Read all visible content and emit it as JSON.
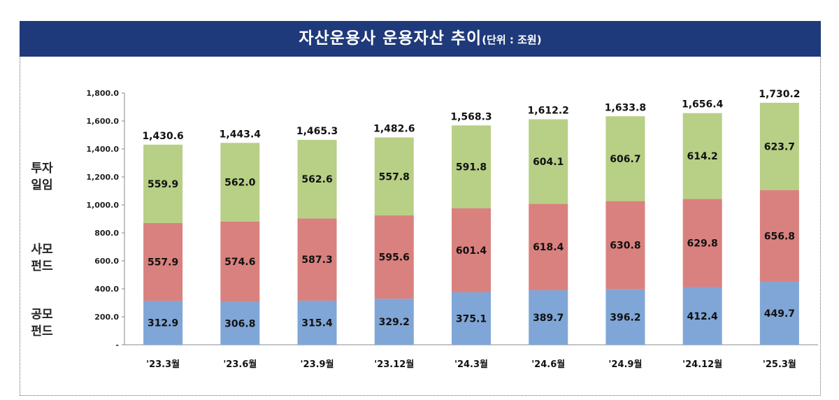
{
  "title": {
    "main": "자산운용사 운용자산 추이",
    "unit": "(단위 : 조원)"
  },
  "side_labels": {
    "investment": [
      "투자",
      "일임"
    ],
    "private_fund": [
      "사모",
      "펀드"
    ],
    "public_fund": [
      "공모",
      "펀드"
    ]
  },
  "colors": {
    "header_bg": "#1f3a7a",
    "public_fund": "#7fa6d6",
    "private_fund": "#d9817e",
    "investment": "#b8cf86"
  },
  "chart_data": {
    "type": "bar",
    "stacked": true,
    "title": "자산운용사 운용자산 추이",
    "categories": [
      "'23.3월",
      "'23.6월",
      "'23.9월",
      "'23.12월",
      "'24.3월",
      "'24.6월",
      "'24.9월",
      "'24.12월",
      "'25.3월"
    ],
    "series": [
      {
        "name": "공모펀드",
        "values": [
          312.9,
          306.8,
          315.4,
          329.2,
          375.1,
          389.7,
          396.2,
          412.4,
          449.7
        ]
      },
      {
        "name": "사모펀드",
        "values": [
          557.9,
          574.6,
          587.3,
          595.6,
          601.4,
          618.4,
          630.8,
          629.8,
          656.8
        ]
      },
      {
        "name": "투자일임",
        "values": [
          559.9,
          562.0,
          562.6,
          557.8,
          591.8,
          604.1,
          606.7,
          614.2,
          623.7
        ]
      }
    ],
    "value_labels": [
      [
        "312.9",
        "306.8",
        "315.4",
        "329.2",
        "375.1",
        "389.7",
        "396.2",
        "412.4",
        "449.7"
      ],
      [
        "557.9",
        "574.6",
        "587.3",
        "595.6",
        "601.4",
        "618.4",
        "630.8",
        "629.8",
        "656.8"
      ],
      [
        "559.9",
        "562.0",
        "562.6",
        "557.8",
        "591.8",
        "604.1",
        "606.7",
        "614.2",
        "623.7"
      ]
    ],
    "totals": [
      "1,430.6",
      "1,443.4",
      "1,465.3",
      "1,482.6",
      "1,568.3",
      "1,612.2",
      "1,633.8",
      "1,656.4",
      "1,730.2"
    ],
    "ylim": [
      0,
      1800
    ],
    "yticks": [
      0,
      200,
      400,
      600,
      800,
      1000,
      1200,
      1400,
      1600,
      1800
    ],
    "ytick_labels": [
      "-",
      "200.0",
      "400.0",
      "600.0",
      "800.0",
      "1,000.0",
      "1,200.0",
      "1,400.0",
      "1,600.0",
      "1,800.0"
    ],
    "grid": false,
    "legend": "left-side labels"
  }
}
